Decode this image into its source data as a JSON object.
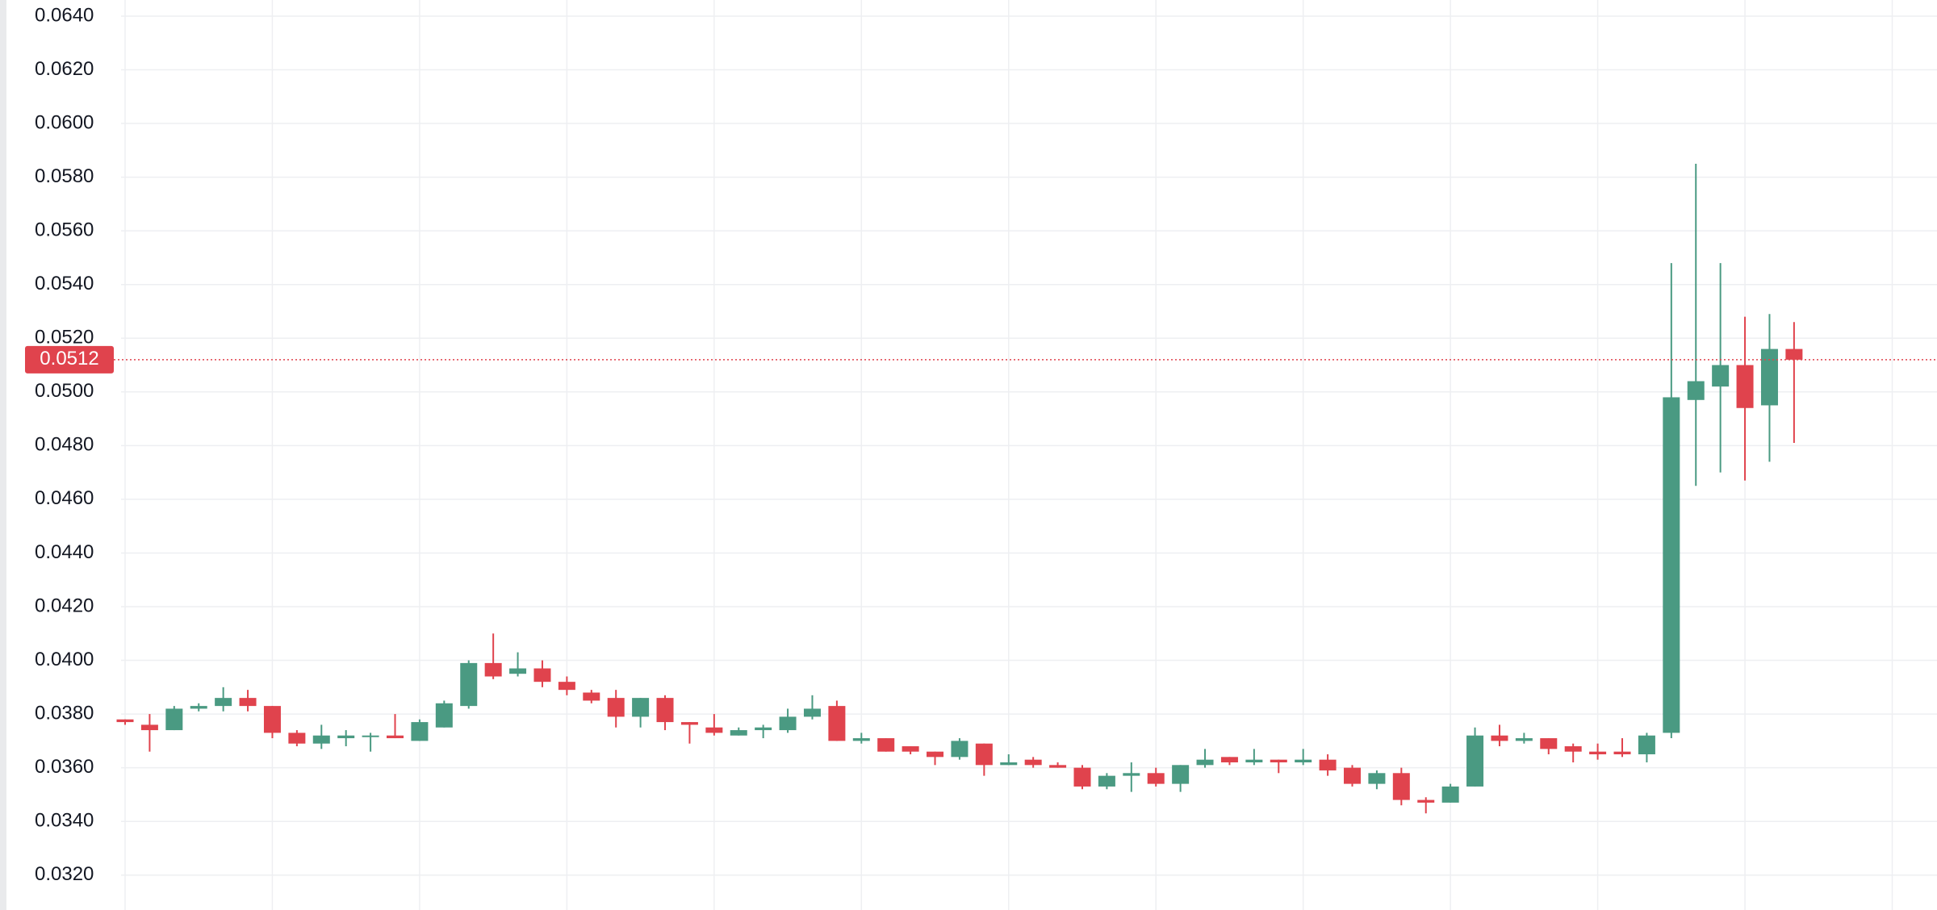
{
  "chart_data": {
    "type": "candlestick",
    "up_color": "#4a9a82",
    "down_color": "#e0434d",
    "open": [
      0.0378,
      0.0376,
      0.0374,
      0.0382,
      0.0383,
      0.0386,
      0.0383,
      0.0373,
      0.0369,
      0.0371,
      0.0372,
      0.0372,
      0.037,
      0.0375,
      0.0383,
      0.0399,
      0.0395,
      0.0397,
      0.0392,
      0.0388,
      0.0386,
      0.0379,
      0.0386,
      0.0377,
      0.0375,
      0.0372,
      0.0374,
      0.0374,
      0.0379,
      0.0383,
      0.037,
      0.0371,
      0.0368,
      0.0366,
      0.0364,
      0.0369,
      0.0361,
      0.0363,
      0.0361,
      0.036,
      0.0353,
      0.0357,
      0.0358,
      0.0354,
      0.0361,
      0.0364,
      0.0362,
      0.0363,
      0.0362,
      0.0363,
      0.036,
      0.0354,
      0.0358,
      0.0348,
      0.0347,
      0.0353,
      0.0372,
      0.037,
      0.0371,
      0.0368,
      0.0366,
      0.0366,
      0.0365,
      0.0373,
      0.0497,
      0.0502,
      0.051,
      0.0495,
      0.0516
    ],
    "high": [
      0.0378,
      0.038,
      0.0383,
      0.0384,
      0.039,
      0.0389,
      0.0383,
      0.0374,
      0.0376,
      0.0374,
      0.0373,
      0.038,
      0.0378,
      0.0385,
      0.04,
      0.041,
      0.0403,
      0.04,
      0.0394,
      0.0389,
      0.0389,
      0.0386,
      0.0387,
      0.0377,
      0.038,
      0.0375,
      0.0376,
      0.0382,
      0.0387,
      0.0385,
      0.0373,
      0.0371,
      0.0368,
      0.0366,
      0.0371,
      0.0369,
      0.0365,
      0.0364,
      0.0362,
      0.0361,
      0.0358,
      0.0362,
      0.036,
      0.0361,
      0.0367,
      0.0364,
      0.0367,
      0.0363,
      0.0367,
      0.0365,
      0.0361,
      0.0359,
      0.036,
      0.0349,
      0.0354,
      0.0375,
      0.0376,
      0.0373,
      0.0371,
      0.0369,
      0.0369,
      0.0371,
      0.0373,
      0.0548,
      0.0585,
      0.0548,
      0.0528,
      0.0529,
      0.0526
    ],
    "low": [
      0.0376,
      0.0366,
      0.0374,
      0.0381,
      0.0381,
      0.0381,
      0.0371,
      0.0368,
      0.0367,
      0.0368,
      0.0366,
      0.0371,
      0.037,
      0.0375,
      0.0382,
      0.0393,
      0.0394,
      0.039,
      0.0387,
      0.0384,
      0.0375,
      0.0375,
      0.0374,
      0.0369,
      0.0372,
      0.0372,
      0.0371,
      0.0373,
      0.0378,
      0.037,
      0.0369,
      0.0366,
      0.0365,
      0.0361,
      0.0363,
      0.0357,
      0.0361,
      0.036,
      0.036,
      0.0352,
      0.0352,
      0.0351,
      0.0353,
      0.0351,
      0.036,
      0.0361,
      0.0361,
      0.0358,
      0.0361,
      0.0357,
      0.0353,
      0.0352,
      0.0346,
      0.0343,
      0.0347,
      0.0353,
      0.0368,
      0.0369,
      0.0365,
      0.0362,
      0.0363,
      0.0364,
      0.0362,
      0.0371,
      0.0465,
      0.047,
      0.0467,
      0.0474,
      0.0481
    ],
    "close": [
      0.0377,
      0.0374,
      0.0382,
      0.0383,
      0.0386,
      0.0383,
      0.0373,
      0.0369,
      0.0372,
      0.0372,
      0.0372,
      0.0371,
      0.0377,
      0.0384,
      0.0399,
      0.0394,
      0.0397,
      0.0392,
      0.0389,
      0.0385,
      0.0379,
      0.0386,
      0.0377,
      0.0376,
      0.0373,
      0.0374,
      0.0375,
      0.0379,
      0.0382,
      0.037,
      0.0371,
      0.0366,
      0.0366,
      0.0364,
      0.037,
      0.0361,
      0.0362,
      0.0361,
      0.036,
      0.0353,
      0.0357,
      0.0358,
      0.0354,
      0.0361,
      0.0363,
      0.0362,
      0.0363,
      0.0362,
      0.0363,
      0.0359,
      0.0354,
      0.0358,
      0.0348,
      0.0347,
      0.0353,
      0.0372,
      0.037,
      0.0371,
      0.0367,
      0.0366,
      0.0365,
      0.0365,
      0.0372,
      0.0498,
      0.0504,
      0.051,
      0.0494,
      0.0516,
      0.0512
    ],
    "ylim": [
      0.0307,
      0.0646
    ],
    "yticks": [
      {
        "value": 0.064,
        "label": "0.0640"
      },
      {
        "value": 0.062,
        "label": "0.0620"
      },
      {
        "value": 0.06,
        "label": "0.0600"
      },
      {
        "value": 0.058,
        "label": "0.0580"
      },
      {
        "value": 0.056,
        "label": "0.0560"
      },
      {
        "value": 0.054,
        "label": "0.0540"
      },
      {
        "value": 0.052,
        "label": "0.0520"
      },
      {
        "value": 0.05,
        "label": "0.0500"
      },
      {
        "value": 0.048,
        "label": "0.0480"
      },
      {
        "value": 0.046,
        "label": "0.0460"
      },
      {
        "value": 0.044,
        "label": "0.0440"
      },
      {
        "value": 0.042,
        "label": "0.0420"
      },
      {
        "value": 0.04,
        "label": "0.0400"
      },
      {
        "value": 0.038,
        "label": "0.0380"
      },
      {
        "value": 0.036,
        "label": "0.0360"
      },
      {
        "value": 0.034,
        "label": "0.0340"
      },
      {
        "value": 0.032,
        "label": "0.0320"
      }
    ],
    "grid": true,
    "price_line": {
      "value": 0.0512,
      "value_label": "0.0512",
      "color": "#e0434d"
    }
  }
}
